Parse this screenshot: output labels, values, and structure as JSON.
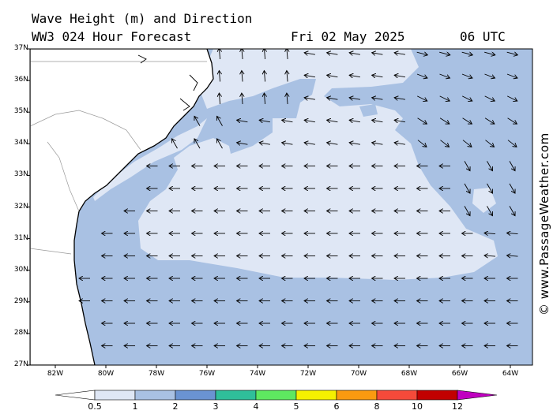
{
  "header": {
    "title": "Wave Height (m) and Direction",
    "model": "WW3 024 Hour Forecast",
    "date": "Fri 02 May 2025",
    "time": "06 UTC"
  },
  "credit": "© www.PassageWeather.com",
  "axes": {
    "lat_labels": [
      "37N",
      "36N",
      "35N",
      "34N",
      "33N",
      "32N",
      "31N",
      "30N",
      "29N",
      "28N",
      "27N"
    ],
    "lon_labels": [
      "82W",
      "80W",
      "78W",
      "76W",
      "74W",
      "72W",
      "70W",
      "68W",
      "66W",
      "64W"
    ]
  },
  "colorbar": {
    "labels": [
      "0.5",
      "1",
      "2",
      "3",
      "4",
      "5",
      "6",
      "8",
      "10",
      "12"
    ],
    "colors": [
      "#dfe7f5",
      "#a9c1e3",
      "#6a93d2",
      "#2fbf9a",
      "#5ee860",
      "#f5f000",
      "#fa9a10",
      "#f54a3a",
      "#c20000",
      "#c000c0"
    ]
  },
  "colors": {
    "land": "#ffffff",
    "sea_low": "#dfe7f5",
    "sea_mid": "#a9c1e3"
  }
}
